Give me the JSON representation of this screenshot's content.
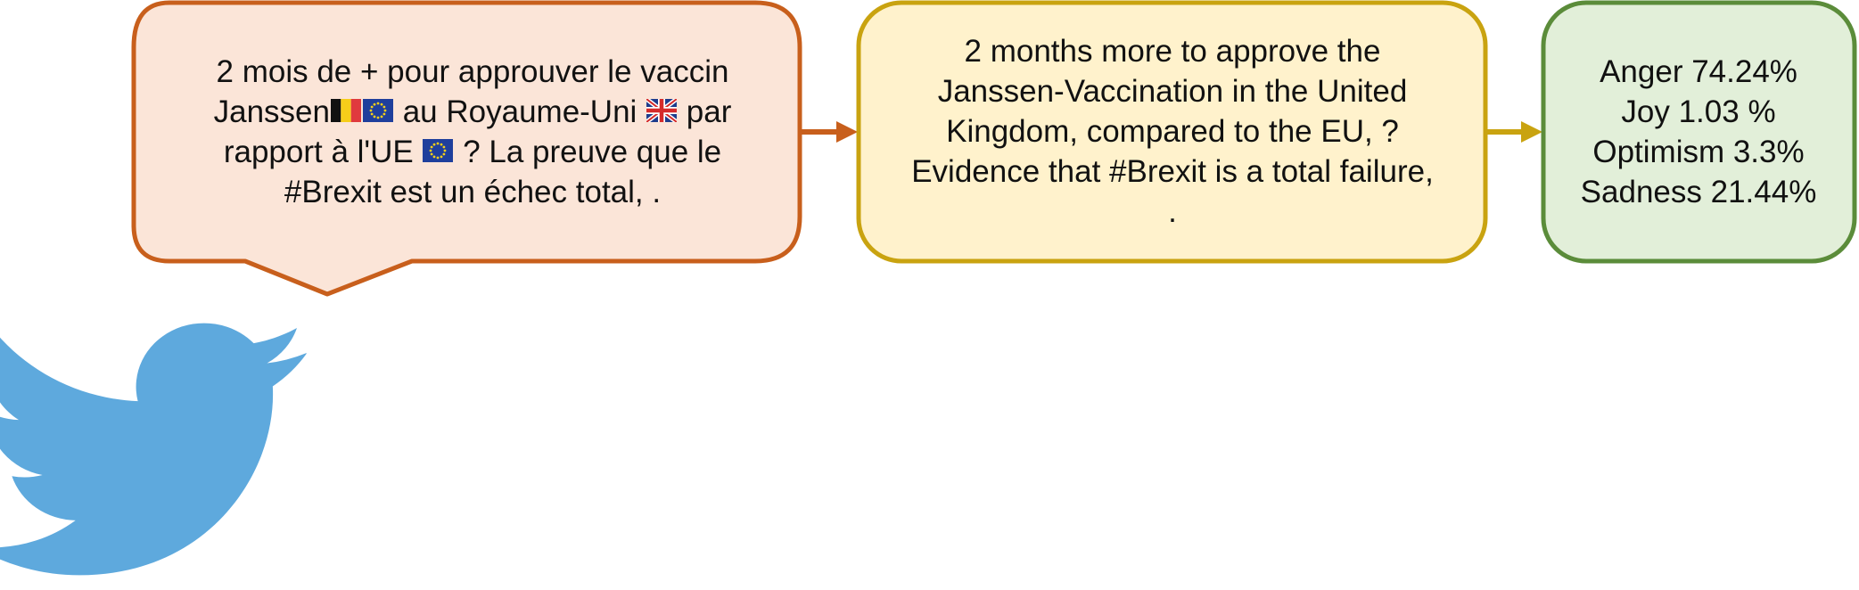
{
  "colors": {
    "source_fill": "#fbe5d8",
    "source_stroke": "#c85f1c",
    "translation_fill": "#fff2cc",
    "translation_stroke": "#c9a310",
    "emotion_fill": "#e2efd9",
    "emotion_stroke": "#5b8c3a",
    "twitter_blue": "#5ea9dd"
  },
  "icons": [
    "twitter-bird-icon",
    "belgium-flag-icon",
    "eu-flag-icon",
    "uk-flag-icon",
    "arrow-right-icon"
  ],
  "source_tweet": {
    "line1": "2 mois de + pour approuver le vaccin",
    "line2a": "Janssen",
    "line2b": " au Royaume-Uni ",
    "line2c": " par",
    "line3a": "rapport à l'UE ",
    "line3b": " ? La preuve que le",
    "line4": "#Brexit est un échec total, ."
  },
  "translation": {
    "lines": [
      "2 months more to approve the",
      "Janssen-Vaccination in the United",
      "Kingdom, compared to the EU, ?",
      "Evidence that #Brexit is a total failure,",
      "."
    ]
  },
  "emotions": {
    "lines": [
      "Anger 74.24%",
      "Joy 1.03 %",
      "Optimism 3.3%",
      "Sadness 21.44%"
    ]
  }
}
